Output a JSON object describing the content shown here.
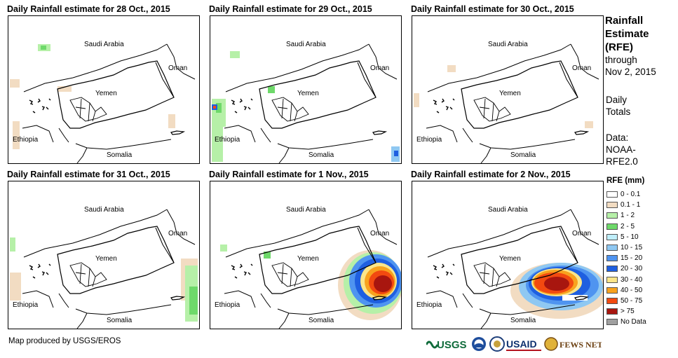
{
  "panels": [
    {
      "title": "Daily Rainfall estimate for 28 Oct., 2015"
    },
    {
      "title": "Daily Rainfall estimate for 29 Oct., 2015"
    },
    {
      "title": "Daily Rainfall estimate for 30 Oct., 2015"
    },
    {
      "title": "Daily Rainfall estimate for 31 Oct., 2015"
    },
    {
      "title": "Daily Rainfall estimate for 1 Nov., 2015"
    },
    {
      "title": "Daily Rainfall estimate for 2 Nov., 2015"
    }
  ],
  "places": {
    "saudi": "Saudi Arabia",
    "oman": "Oman",
    "yemen": "Yemen",
    "ethiopia": "Ethiopia",
    "somalia": "Somalia"
  },
  "sidebar": {
    "title_lines": [
      "Rainfall",
      "Estimate",
      "(RFE)"
    ],
    "through_lines": [
      "through",
      "Nov 2, 2015"
    ],
    "daily_lines": [
      "Daily",
      "Totals"
    ],
    "data_lines": [
      "Data:",
      "NOAA-",
      "RFE2.0"
    ]
  },
  "legend": {
    "title": "RFE (mm)",
    "items": [
      {
        "label": "0 - 0.1",
        "color": "#ffffff"
      },
      {
        "label": "0.1 - 1",
        "color": "#f2dcc2"
      },
      {
        "label": "1 - 2",
        "color": "#b6f0a8"
      },
      {
        "label": "2 - 5",
        "color": "#6ed96a"
      },
      {
        "label": "5 - 10",
        "color": "#bfeefa"
      },
      {
        "label": "10 - 15",
        "color": "#8fc8f2"
      },
      {
        "label": "15 - 20",
        "color": "#4f94f0"
      },
      {
        "label": "20 - 30",
        "color": "#1f5fe0"
      },
      {
        "label": "30 - 40",
        "color": "#fbe58a"
      },
      {
        "label": "40 - 50",
        "color": "#f8a21e"
      },
      {
        "label": "50 - 75",
        "color": "#f24a10"
      },
      {
        "label": "> 75",
        "color": "#a8160f"
      },
      {
        "label": "No Data",
        "color": "#a0a0a0"
      }
    ]
  },
  "credit": "Map produced by USGS/EROS",
  "logos": {
    "usgs": "USGS",
    "usaid": "USAID",
    "fews": "FEWS NET"
  }
}
